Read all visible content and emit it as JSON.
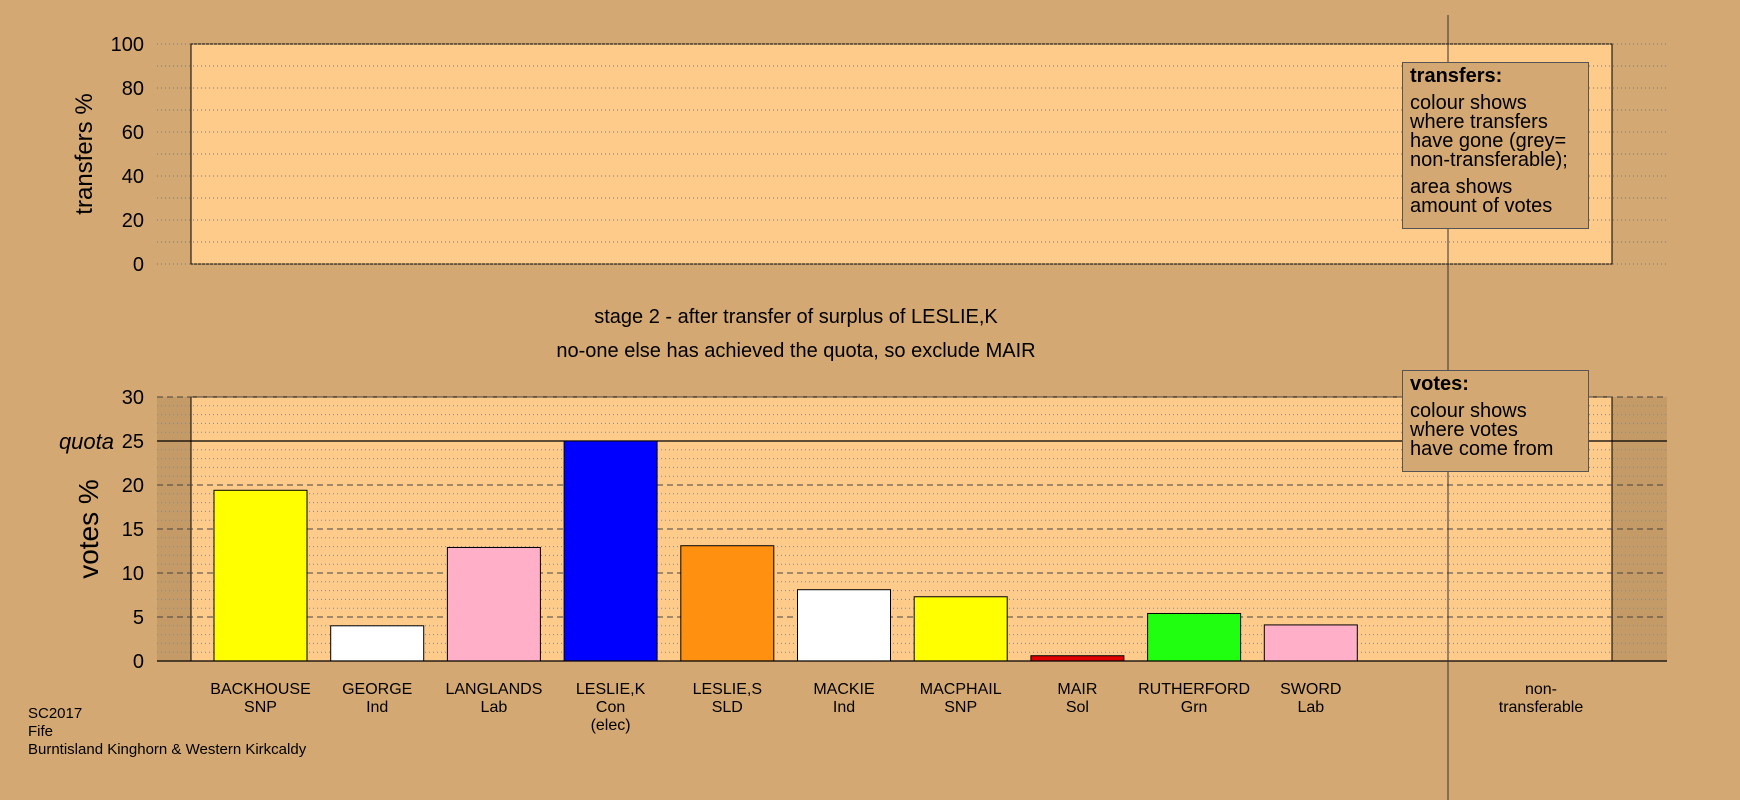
{
  "chart_data": [
    {
      "type": "bar",
      "ylabel": "transfers %",
      "ylim": [
        0,
        100
      ],
      "ticks": [
        0,
        20,
        40,
        60,
        80,
        100
      ],
      "grid": true,
      "categories": [
        "BACKHOUSE SNP",
        "GEORGE Ind",
        "LANGLANDS Lab",
        "LESLIE,K Con (elec)",
        "LESLIE,S SLD",
        "MACKIE Ind",
        "MACPHAIL SNP",
        "MAIR Sol",
        "RUTHERFORD Grn",
        "SWORD Lab",
        "non-transferable"
      ],
      "values": [
        0,
        0,
        0,
        0,
        0,
        0,
        0,
        0,
        0,
        0,
        0
      ]
    },
    {
      "type": "bar",
      "ylabel": "votes %",
      "ylim": [
        0,
        30
      ],
      "ticks": [
        0,
        5,
        10,
        15,
        20,
        25,
        30
      ],
      "quota": 25,
      "quota_label": "quota",
      "grid": true,
      "categories": [
        {
          "name": "BACKHOUSE",
          "party": "SNP",
          "note": ""
        },
        {
          "name": "GEORGE",
          "party": "Ind",
          "note": ""
        },
        {
          "name": "LANGLANDS",
          "party": "Lab",
          "note": ""
        },
        {
          "name": "LESLIE,K",
          "party": "Con",
          "note": "(elec)"
        },
        {
          "name": "LESLIE,S",
          "party": "SLD",
          "note": ""
        },
        {
          "name": "MACKIE",
          "party": "Ind",
          "note": ""
        },
        {
          "name": "MACPHAIL",
          "party": "SNP",
          "note": ""
        },
        {
          "name": "MAIR",
          "party": "Sol",
          "note": ""
        },
        {
          "name": "RUTHERFORD",
          "party": "Grn",
          "note": ""
        },
        {
          "name": "SWORD",
          "party": "Lab",
          "note": ""
        }
      ],
      "values": [
        19.4,
        4.0,
        12.9,
        25.0,
        13.1,
        8.1,
        7.3,
        0.6,
        5.4,
        4.1
      ],
      "colors": [
        "#ffff00",
        "#ffffff",
        "#ffb0c8",
        "#0000ff",
        "#ff9010",
        "#ffffff",
        "#ffff00",
        "#e00000",
        "#20ff10",
        "#ffb0c8"
      ],
      "nontransferable_label": [
        "non-",
        "transferable"
      ]
    }
  ],
  "stage_title": "stage 2 - after transfer of surplus of LESLIE,K",
  "stage_subtitle": "no-one else has achieved the quota, so exclude MAIR",
  "legend_transfers": {
    "title": "transfers:",
    "text1": "colour shows where transfers have gone (grey= non-transferable);",
    "text1_lines": [
      "colour shows",
      "where transfers",
      "have gone (grey=",
      "non-transferable);"
    ],
    "text2": "area shows amount of votes",
    "text2_lines": [
      "area shows",
      "amount of votes"
    ]
  },
  "legend_votes": {
    "title": "votes:",
    "text": "colour shows where votes have come from",
    "text_lines": [
      "colour shows",
      "where votes",
      "have come from"
    ]
  },
  "footer": {
    "line1": "SC2017",
    "line2": "Fife",
    "line3": "Burntisland Kinghorn & Western Kirkcaldy"
  },
  "colors": {
    "background": "#d4a872",
    "plot_area": "#fecb8b"
  }
}
